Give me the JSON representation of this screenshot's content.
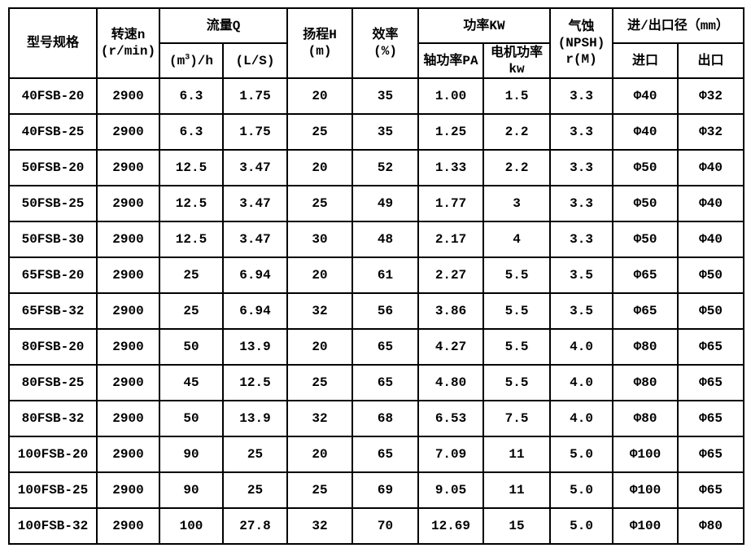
{
  "table": {
    "colors": {
      "border": "#000000",
      "text": "#000000",
      "background": "#ffffff"
    },
    "header": {
      "model": "型号规格",
      "speed": [
        "转速n",
        "(r/min)"
      ],
      "flow": "流量Q",
      "flow_unit_m3h": {
        "pre": "(m",
        "sup": "3",
        "post": ")/h"
      },
      "flow_unit_ls": "(L/S)",
      "head": [
        "扬程H",
        "(m)"
      ],
      "efficiency": [
        "效率",
        "(%)"
      ],
      "power": "功率KW",
      "shaft_power": "轴功率PA",
      "motor_power": [
        "电机功率",
        "kw"
      ],
      "npsh": [
        "气蚀",
        "(NPSH)",
        "r(M)"
      ],
      "ports": "进/出口径（mm）",
      "inlet": "进口",
      "outlet": "出口"
    },
    "rows": [
      [
        "40FSB-20",
        "2900",
        "6.3",
        "1.75",
        "20",
        "35",
        "1.00",
        "1.5",
        "3.3",
        "Φ40",
        "Φ32"
      ],
      [
        "40FSB-25",
        "2900",
        "6.3",
        "1.75",
        "25",
        "35",
        "1.25",
        "2.2",
        "3.3",
        "Φ40",
        "Φ32"
      ],
      [
        "50FSB-20",
        "2900",
        "12.5",
        "3.47",
        "20",
        "52",
        "1.33",
        "2.2",
        "3.3",
        "Φ50",
        "Φ40"
      ],
      [
        "50FSB-25",
        "2900",
        "12.5",
        "3.47",
        "25",
        "49",
        "1.77",
        "3",
        "3.3",
        "Φ50",
        "Φ40"
      ],
      [
        "50FSB-30",
        "2900",
        "12.5",
        "3.47",
        "30",
        "48",
        "2.17",
        "4",
        "3.3",
        "Φ50",
        "Φ40"
      ],
      [
        "65FSB-20",
        "2900",
        "25",
        "6.94",
        "20",
        "61",
        "2.27",
        "5.5",
        "3.5",
        "Φ65",
        "Φ50"
      ],
      [
        "65FSB-32",
        "2900",
        "25",
        "6.94",
        "32",
        "56",
        "3.86",
        "5.5",
        "3.5",
        "Φ65",
        "Φ50"
      ],
      [
        "80FSB-20",
        "2900",
        "50",
        "13.9",
        "20",
        "65",
        "4.27",
        "5.5",
        "4.0",
        "Φ80",
        "Φ65"
      ],
      [
        "80FSB-25",
        "2900",
        "45",
        "12.5",
        "25",
        "65",
        "4.80",
        "5.5",
        "4.0",
        "Φ80",
        "Φ65"
      ],
      [
        "80FSB-32",
        "2900",
        "50",
        "13.9",
        "32",
        "68",
        "6.53",
        "7.5",
        "4.0",
        "Φ80",
        "Φ65"
      ],
      [
        "100FSB-20",
        "2900",
        "90",
        "25",
        "20",
        "65",
        "7.09",
        "11",
        "5.0",
        "Φ100",
        "Φ65"
      ],
      [
        "100FSB-25",
        "2900",
        "90",
        "25",
        "25",
        "69",
        "9.05",
        "11",
        "5.0",
        "Φ100",
        "Φ65"
      ],
      [
        "100FSB-32",
        "2900",
        "100",
        "27.8",
        "32",
        "70",
        "12.69",
        "15",
        "5.0",
        "Φ100",
        "Φ80"
      ]
    ]
  }
}
